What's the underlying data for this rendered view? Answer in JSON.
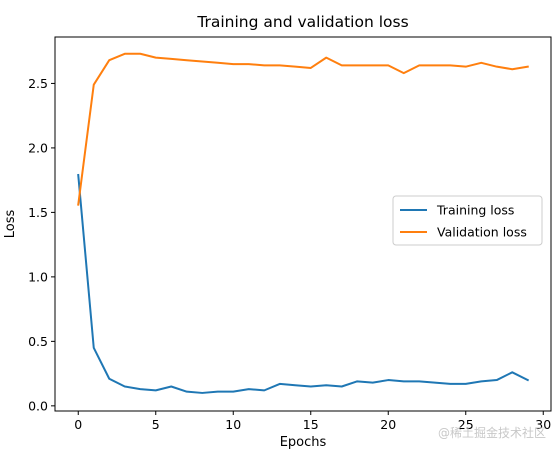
{
  "chart_data": {
    "type": "line",
    "title": "Training and validation loss",
    "xlabel": "Epochs",
    "ylabel": "Loss",
    "xlim": [
      -1.5,
      30.5
    ],
    "ylim": [
      -0.04,
      2.86
    ],
    "xticks": [
      0,
      5,
      10,
      15,
      20,
      25,
      30
    ],
    "yticks": [
      0.0,
      0.5,
      1.0,
      1.5,
      2.0,
      2.5
    ],
    "ytick_labels": [
      "0.0",
      "0.5",
      "1.0",
      "1.5",
      "2.0",
      "2.5"
    ],
    "grid": false,
    "legend_position": "center-right",
    "x": [
      0,
      1,
      2,
      3,
      4,
      5,
      6,
      7,
      8,
      9,
      10,
      11,
      12,
      13,
      14,
      15,
      16,
      17,
      18,
      19,
      20,
      21,
      22,
      23,
      24,
      25,
      26,
      27,
      28,
      29
    ],
    "series": [
      {
        "name": "Training loss",
        "color": "#1f77b4",
        "values": [
          1.79,
          0.45,
          0.21,
          0.15,
          0.13,
          0.12,
          0.15,
          0.11,
          0.1,
          0.11,
          0.11,
          0.13,
          0.12,
          0.17,
          0.16,
          0.15,
          0.16,
          0.15,
          0.19,
          0.18,
          0.2,
          0.19,
          0.19,
          0.18,
          0.17,
          0.17,
          0.19,
          0.2,
          0.26,
          0.2
        ]
      },
      {
        "name": "Validation loss",
        "color": "#ff7f0e",
        "values": [
          1.56,
          2.49,
          2.68,
          2.73,
          2.73,
          2.7,
          2.69,
          2.68,
          2.67,
          2.66,
          2.65,
          2.65,
          2.64,
          2.64,
          2.63,
          2.62,
          2.7,
          2.64,
          2.64,
          2.64,
          2.64,
          2.58,
          2.64,
          2.64,
          2.64,
          2.63,
          2.66,
          2.63,
          2.61,
          2.63
        ]
      }
    ]
  },
  "watermark": "@稀土掘金技术社区"
}
